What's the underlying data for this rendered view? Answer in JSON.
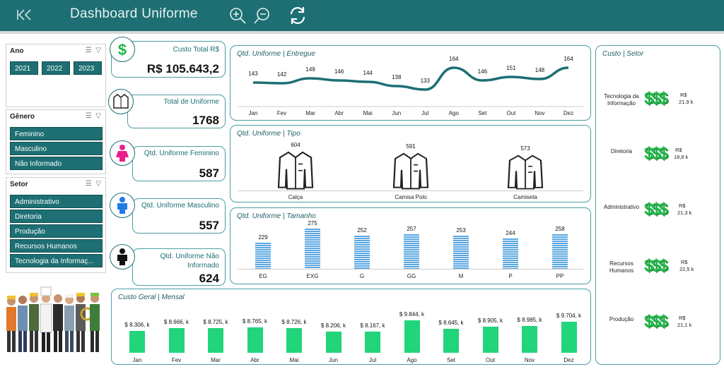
{
  "header": {
    "title": "Dashboard Uniforme"
  },
  "slicers": {
    "ano": {
      "title": "Ano",
      "items": [
        "2021",
        "2022",
        "2023"
      ]
    },
    "genero": {
      "title": "Gênero",
      "items": [
        "Feminino",
        "Masculino",
        "Não Informado"
      ]
    },
    "setor": {
      "title": "Setor",
      "items": [
        "Administrativo",
        "Diretoria",
        "Produção",
        "Recursos Humanos",
        "Tecnologia da Informaç..."
      ]
    }
  },
  "kpis": {
    "custo_total": {
      "label": "Custo Total R$",
      "value": "R$ 105.643,2"
    },
    "total_uniforme": {
      "label": "Total de Uniforme",
      "value": "1768"
    },
    "feminino": {
      "label": "Qtd. Uniforme Feminino",
      "value": "587"
    },
    "masculino": {
      "label": "Qtd. Uniforme Masculino",
      "value": "557"
    },
    "nao_informado": {
      "label": "Qtd. Uniforme Não Informado",
      "value": "624"
    }
  },
  "chart_data": [
    {
      "type": "line",
      "title": "Qtd. Uniforme | Entregue",
      "categories": [
        "Jan",
        "Fev",
        "Mar",
        "Abr",
        "Mai",
        "Jun",
        "Jul",
        "Ago",
        "Set",
        "Out",
        "Nov",
        "Dez"
      ],
      "values": [
        143,
        142,
        149,
        146,
        144,
        138,
        133,
        164,
        146,
        151,
        148,
        164
      ]
    },
    {
      "type": "bar",
      "title": "Qtd. Uniforme | Tipo",
      "categories": [
        "Calça",
        "Camisa Polo",
        "Camiseta"
      ],
      "values": [
        604,
        591,
        573
      ]
    },
    {
      "type": "bar",
      "title": "Qtd. Uniforme | Tamanho",
      "categories": [
        "EG",
        "EXG",
        "G",
        "GG",
        "M",
        "P",
        "PP"
      ],
      "values": [
        229,
        275,
        252,
        257,
        253,
        244,
        258
      ]
    },
    {
      "type": "bar",
      "title": "Custo Geral | Mensal",
      "categories": [
        "Jan",
        "Fev",
        "Mar",
        "Abr",
        "Mai",
        "Jun",
        "Jul",
        "Ago",
        "Set",
        "Out",
        "Nov",
        "Dez"
      ],
      "values": [
        8306,
        8666,
        8725,
        8765,
        8726,
        8206,
        8167,
        9844,
        8645,
        8905,
        8985,
        9704
      ],
      "labels": [
        "$ 8.306, k",
        "$ 8.666, k",
        "$ 8.725, k",
        "$ 8.765, k",
        "$ 8.726, k",
        "$ 8.206, k",
        "$ 8.167, k",
        "$ 9.844, k",
        "$ 8.645, k",
        "$ 8.905, k",
        "$ 8.985, k",
        "$ 9.704, k"
      ]
    },
    {
      "type": "bar",
      "title": "Custo | Setor",
      "categories": [
        "Tecnologia da Informação",
        "Diretoria",
        "Administrativo",
        "Recursos Humanos",
        "Produção"
      ],
      "values": [
        21.9,
        18.8,
        21.3,
        22.5,
        21.1
      ],
      "labels": [
        "21,9 k",
        "18,8 k",
        "21,3 k",
        "22,5 k",
        "21,1 k"
      ],
      "currency": "R$"
    }
  ],
  "colors": {
    "accent": "#1d6f73",
    "bar_green": "#22d47a",
    "bar_blue": "#5aa6e0"
  }
}
